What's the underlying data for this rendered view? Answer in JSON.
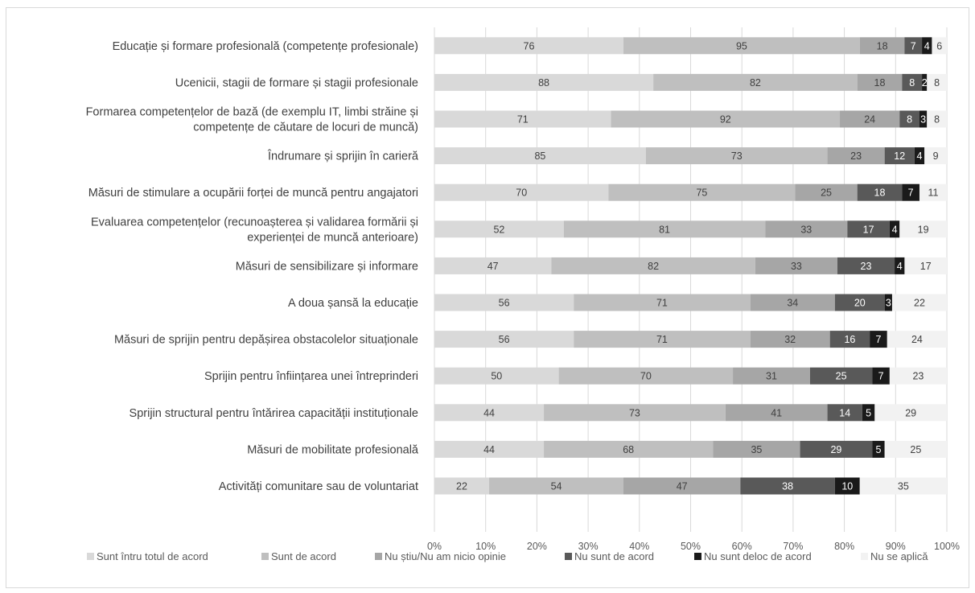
{
  "chart_data": {
    "type": "bar",
    "orientation": "horizontal",
    "stacked": "percent",
    "title": "",
    "xlabel": "",
    "ylabel": "",
    "xlim": [
      0,
      100
    ],
    "x_ticks": [
      "0%",
      "10%",
      "20%",
      "30%",
      "40%",
      "50%",
      "60%",
      "70%",
      "80%",
      "90%",
      "100%"
    ],
    "grid": true,
    "legend_position": "bottom",
    "categories": [
      [
        "Educație și formare profesională  (competențe profesionale)"
      ],
      [
        "Ucenicii, stagii de formare și stagii profesionale"
      ],
      [
        "Formarea competențelor de bază (de exemplu IT, limbi străine și",
        "competențe de căutare de locuri de muncă)"
      ],
      [
        "Îndrumare și sprijin în carieră"
      ],
      [
        "Măsuri de stimulare a ocupării forței de muncă pentru angajatori"
      ],
      [
        "Evaluarea competențelor (recunoașterea și validarea formării și",
        "experienței de muncă anterioare)"
      ],
      [
        "Măsuri de sensibilizare și informare"
      ],
      [
        "A doua șansă la educație"
      ],
      [
        "Măsuri de sprijin pentru depășirea obstacolelor situaționale"
      ],
      [
        "Sprijin pentru înființarea unei întreprinderi"
      ],
      [
        "Sprijin structural pentru întărirea capacității instituționale"
      ],
      [
        "Măsuri de mobilitate profesională"
      ],
      [
        "Activități comunitare sau de voluntariat"
      ]
    ],
    "series": [
      {
        "name": "Sunt întru totul de acord",
        "color": "#d9d9d9",
        "label_color": "#404040",
        "values": [
          76,
          88,
          71,
          85,
          70,
          52,
          47,
          56,
          56,
          50,
          44,
          44,
          22
        ]
      },
      {
        "name": "Sunt de acord",
        "color": "#bfbfbf",
        "label_color": "#404040",
        "values": [
          95,
          82,
          92,
          73,
          75,
          81,
          82,
          71,
          71,
          70,
          73,
          68,
          54
        ]
      },
      {
        "name": "Nu știu/Nu am nicio opinie",
        "color": "#a6a6a6",
        "label_color": "#404040",
        "values": [
          18,
          18,
          24,
          23,
          25,
          33,
          33,
          34,
          32,
          31,
          41,
          35,
          47
        ]
      },
      {
        "name": "Nu sunt de acord",
        "color": "#595959",
        "label_color": "#ffffff",
        "values": [
          7,
          8,
          8,
          12,
          18,
          17,
          23,
          20,
          16,
          25,
          14,
          29,
          38
        ]
      },
      {
        "name": "Nu sunt deloc de acord",
        "color": "#1a1a1a",
        "label_color": "#ffffff",
        "values": [
          4,
          2,
          3,
          4,
          7,
          4,
          4,
          3,
          7,
          7,
          5,
          5,
          10
        ]
      },
      {
        "name": "Nu se aplică",
        "color": "#f2f2f2",
        "label_color": "#404040",
        "values": [
          6,
          8,
          8,
          9,
          11,
          19,
          17,
          22,
          24,
          23,
          29,
          25,
          35
        ]
      }
    ]
  }
}
